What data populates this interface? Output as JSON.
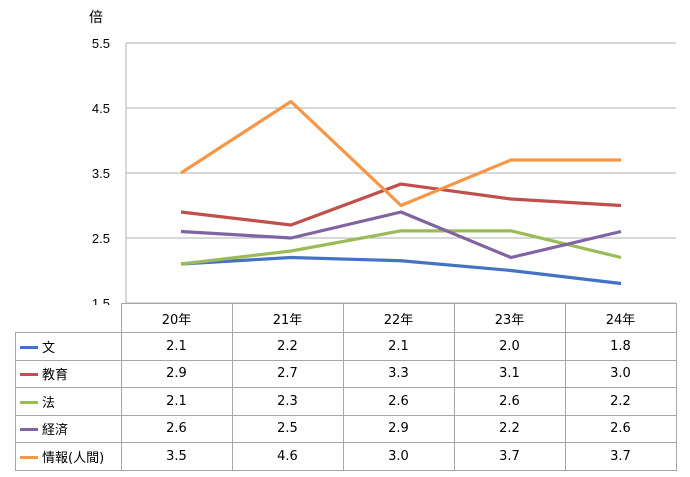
{
  "chart_data": {
    "type": "line",
    "unit_label": "倍",
    "categories": [
      "20年",
      "21年",
      "22年",
      "23年",
      "24年"
    ],
    "yticks": [
      "5.5",
      "4.5",
      "3.5",
      "2.5",
      "1.5"
    ],
    "ylim": [
      1.5,
      5.5
    ],
    "grid": true,
    "legend": "data-table",
    "series": [
      {
        "name": "文",
        "color": "#4472c4",
        "values": [
          2.1,
          2.2,
          2.15,
          2.0,
          1.8
        ],
        "labels": [
          "2.1",
          "2.2",
          "2.1",
          "2.0",
          "1.8"
        ]
      },
      {
        "name": "教育",
        "color": "#c0504d",
        "values": [
          2.9,
          2.7,
          3.33,
          3.1,
          3.0
        ],
        "labels": [
          "2.9",
          "2.7",
          "3.3",
          "3.1",
          "3.0"
        ]
      },
      {
        "name": "法",
        "color": "#9bbb59",
        "values": [
          2.1,
          2.3,
          2.61,
          2.61,
          2.2
        ],
        "labels": [
          "2.1",
          "2.3",
          "2.6",
          "2.6",
          "2.2"
        ]
      },
      {
        "name": "経済",
        "color": "#8064a2",
        "values": [
          2.6,
          2.5,
          2.9,
          2.2,
          2.6
        ],
        "labels": [
          "2.6",
          "2.5",
          "2.9",
          "2.2",
          "2.6"
        ]
      },
      {
        "name": "情報(人間)",
        "color": "#f79646",
        "values": [
          3.5,
          4.6,
          3.0,
          3.7,
          3.7
        ],
        "labels": [
          "3.5",
          "4.6",
          "3.0",
          "3.7",
          "3.7"
        ]
      }
    ]
  }
}
